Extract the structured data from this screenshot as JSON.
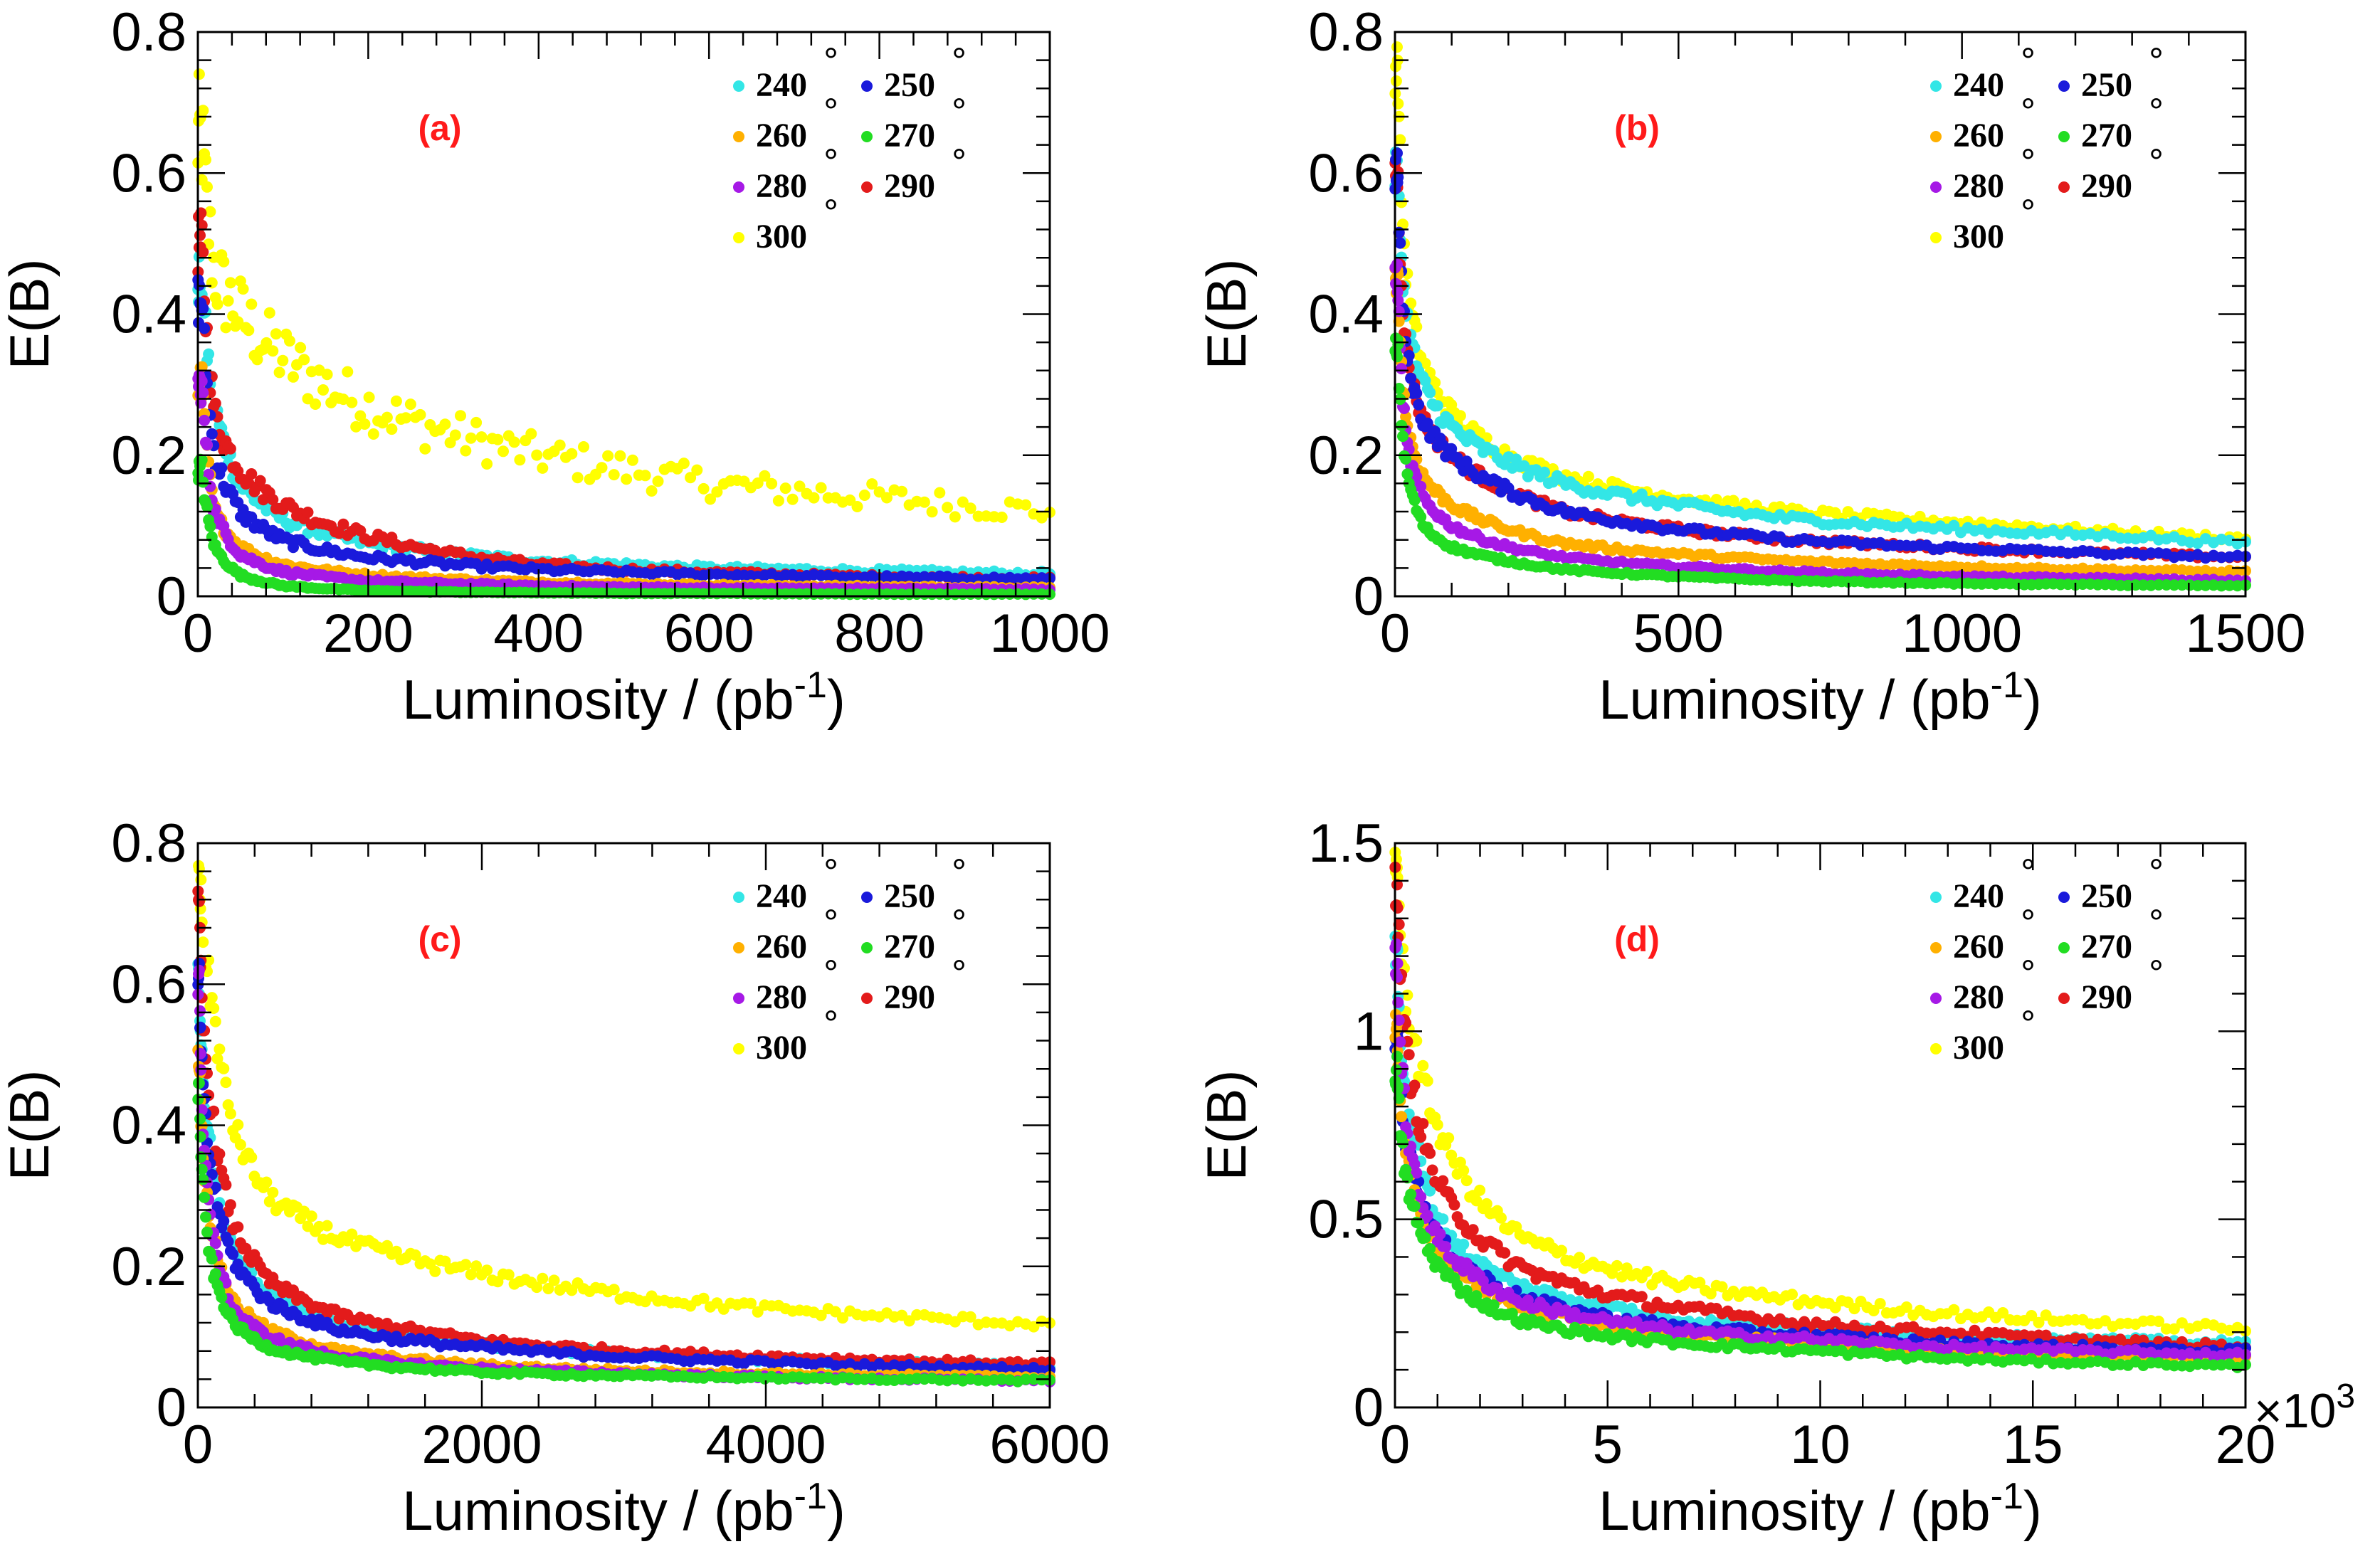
{
  "chart_data": [
    {
      "type": "scatter",
      "panel_label": "(a)",
      "xlabel": "Luminosity / (pb",
      "xlabel_sup": "-1",
      "xlabel_close": ")",
      "ylabel": "E(B)",
      "xlim": [
        0,
        1000
      ],
      "ylim": [
        0,
        0.8
      ],
      "xticks": [
        "0",
        "200",
        "400",
        "600",
        "800",
        "1000"
      ],
      "yticks": [
        "0",
        "0.2",
        "0.4",
        "0.6",
        "0.8"
      ],
      "x_multiplier": "",
      "series": [
        {
          "name": "240",
          "color": "#33e6e6",
          "x": [
            5,
            20,
            50,
            100,
            200,
            300,
            400,
            500,
            600,
            800,
            1000
          ],
          "y": [
            0.45,
            0.27,
            0.16,
            0.11,
            0.075,
            0.06,
            0.05,
            0.045,
            0.04,
            0.036,
            0.032
          ]
        },
        {
          "name": "250",
          "color": "#1a1adb",
          "x": [
            5,
            20,
            50,
            100,
            200,
            300,
            400,
            500,
            600,
            800,
            1000
          ],
          "y": [
            0.42,
            0.2,
            0.12,
            0.08,
            0.055,
            0.045,
            0.038,
            0.034,
            0.031,
            0.027,
            0.025
          ]
        },
        {
          "name": "260",
          "color": "#ffb000",
          "x": [
            5,
            20,
            50,
            100,
            200,
            300,
            400,
            500,
            600,
            800,
            1000
          ],
          "y": [
            0.3,
            0.12,
            0.07,
            0.045,
            0.03,
            0.024,
            0.02,
            0.018,
            0.016,
            0.014,
            0.012
          ]
        },
        {
          "name": "270",
          "color": "#22dd22",
          "x": [
            5,
            20,
            50,
            100,
            200,
            300,
            400,
            500,
            600,
            800,
            1000
          ],
          "y": [
            0.18,
            0.07,
            0.03,
            0.015,
            0.008,
            0.006,
            0.005,
            0.004,
            0.004,
            0.003,
            0.003
          ]
        },
        {
          "name": "280",
          "color": "#a619e6",
          "x": [
            5,
            20,
            50,
            100,
            200,
            300,
            400,
            500,
            600,
            800,
            1000
          ],
          "y": [
            0.3,
            0.12,
            0.06,
            0.035,
            0.022,
            0.018,
            0.015,
            0.013,
            0.012,
            0.011,
            0.01
          ]
        },
        {
          "name": "290",
          "color": "#e31b1b",
          "x": [
            5,
            20,
            50,
            100,
            200,
            300,
            400,
            500,
            600,
            800,
            1000
          ],
          "y": [
            0.5,
            0.26,
            0.18,
            0.13,
            0.085,
            0.06,
            0.045,
            0.038,
            0.034,
            0.028,
            0.025
          ]
        },
        {
          "name": "300",
          "color": "#ffff00",
          "x": [
            5,
            20,
            50,
            100,
            200,
            300,
            400,
            500,
            600,
            800,
            1000
          ],
          "y": [
            0.65,
            0.46,
            0.4,
            0.34,
            0.27,
            0.23,
            0.2,
            0.18,
            0.16,
            0.14,
            0.12
          ]
        }
      ]
    },
    {
      "type": "scatter",
      "panel_label": "(b)",
      "xlabel": "Luminosity / (pb",
      "xlabel_sup": "-1",
      "xlabel_close": ")",
      "ylabel": "E(B)",
      "xlim": [
        0,
        1500
      ],
      "ylim": [
        0,
        0.8
      ],
      "xticks": [
        "0",
        "500",
        "1000",
        "1500"
      ],
      "yticks": [
        "0",
        "0.2",
        "0.4",
        "0.6",
        "0.8"
      ],
      "x_multiplier": "",
      "series": [
        {
          "name": "240",
          "color": "#33e6e6",
          "x": [
            5,
            20,
            50,
            100,
            200,
            300,
            500,
            700,
            1000,
            1300,
            1500
          ],
          "y": [
            0.6,
            0.4,
            0.3,
            0.24,
            0.19,
            0.16,
            0.13,
            0.11,
            0.095,
            0.085,
            0.075
          ]
        },
        {
          "name": "250",
          "color": "#1a1adb",
          "x": [
            5,
            20,
            50,
            100,
            200,
            300,
            500,
            700,
            1000,
            1300,
            1500
          ],
          "y": [
            0.6,
            0.35,
            0.25,
            0.2,
            0.15,
            0.12,
            0.095,
            0.08,
            0.068,
            0.06,
            0.055
          ]
        },
        {
          "name": "260",
          "color": "#ffb000",
          "x": [
            5,
            20,
            50,
            100,
            200,
            300,
            500,
            700,
            1000,
            1300,
            1500
          ],
          "y": [
            0.45,
            0.25,
            0.17,
            0.13,
            0.095,
            0.075,
            0.06,
            0.05,
            0.042,
            0.037,
            0.035
          ]
        },
        {
          "name": "270",
          "color": "#22dd22",
          "x": [
            5,
            20,
            50,
            100,
            200,
            300,
            500,
            700,
            1000,
            1300,
            1500
          ],
          "y": [
            0.35,
            0.18,
            0.1,
            0.07,
            0.05,
            0.038,
            0.028,
            0.022,
            0.018,
            0.016,
            0.015
          ]
        },
        {
          "name": "280",
          "color": "#a619e6",
          "x": [
            5,
            20,
            50,
            100,
            200,
            300,
            500,
            700,
            1000,
            1300,
            1500
          ],
          "y": [
            0.45,
            0.22,
            0.14,
            0.1,
            0.07,
            0.055,
            0.042,
            0.035,
            0.028,
            0.025,
            0.022
          ]
        },
        {
          "name": "290",
          "color": "#e31b1b",
          "x": [
            5,
            20,
            50,
            100,
            200,
            300,
            500,
            700,
            1000,
            1300,
            1500
          ],
          "y": [
            0.6,
            0.35,
            0.25,
            0.2,
            0.15,
            0.12,
            0.095,
            0.08,
            0.068,
            0.06,
            0.055
          ]
        },
        {
          "name": "300",
          "color": "#ffff00",
          "x": [
            5,
            20,
            50,
            100,
            200,
            300,
            500,
            700,
            1000,
            1300,
            1500
          ],
          "y": [
            0.75,
            0.45,
            0.33,
            0.26,
            0.2,
            0.17,
            0.14,
            0.12,
            0.105,
            0.09,
            0.082
          ]
        }
      ]
    },
    {
      "type": "scatter",
      "panel_label": "(c)",
      "xlabel": "Luminosity / (pb",
      "xlabel_sup": "-1",
      "xlabel_close": ")",
      "ylabel": "E(B)",
      "xlim": [
        0,
        6000
      ],
      "ylim": [
        0,
        0.8
      ],
      "xticks": [
        "0",
        "2000",
        "4000",
        "6000"
      ],
      "yticks": [
        "0",
        "0.2",
        "0.4",
        "0.6",
        "0.8"
      ],
      "x_multiplier": "",
      "series": [
        {
          "name": "240",
          "color": "#33e6e6",
          "x": [
            10,
            100,
            250,
            500,
            1000,
            1500,
            2000,
            3000,
            4000,
            5000,
            6000
          ],
          "y": [
            0.6,
            0.35,
            0.22,
            0.16,
            0.12,
            0.1,
            0.09,
            0.075,
            0.068,
            0.062,
            0.058
          ]
        },
        {
          "name": "250",
          "color": "#1a1adb",
          "x": [
            10,
            100,
            250,
            500,
            1000,
            1500,
            2000,
            3000,
            4000,
            5000,
            6000
          ],
          "y": [
            0.6,
            0.33,
            0.21,
            0.15,
            0.11,
            0.095,
            0.085,
            0.072,
            0.064,
            0.058,
            0.054
          ]
        },
        {
          "name": "260",
          "color": "#ffb000",
          "x": [
            10,
            100,
            250,
            500,
            1000,
            1500,
            2000,
            3000,
            4000,
            5000,
            6000
          ],
          "y": [
            0.5,
            0.25,
            0.15,
            0.11,
            0.08,
            0.068,
            0.06,
            0.052,
            0.048,
            0.045,
            0.043
          ]
        },
        {
          "name": "270",
          "color": "#22dd22",
          "x": [
            10,
            100,
            250,
            500,
            1000,
            1500,
            2000,
            3000,
            4000,
            5000,
            6000
          ],
          "y": [
            0.45,
            0.2,
            0.12,
            0.085,
            0.065,
            0.056,
            0.05,
            0.045,
            0.042,
            0.04,
            0.038
          ]
        },
        {
          "name": "280",
          "color": "#a619e6",
          "x": [
            10,
            100,
            250,
            500,
            1000,
            1500,
            2000,
            3000,
            4000,
            5000,
            6000
          ],
          "y": [
            0.6,
            0.25,
            0.14,
            0.1,
            0.072,
            0.062,
            0.055,
            0.048,
            0.043,
            0.04,
            0.038
          ]
        },
        {
          "name": "290",
          "color": "#e31b1b",
          "x": [
            10,
            100,
            250,
            500,
            1000,
            1500,
            2000,
            3000,
            4000,
            5000,
            6000
          ],
          "y": [
            0.7,
            0.42,
            0.26,
            0.18,
            0.13,
            0.11,
            0.095,
            0.08,
            0.072,
            0.066,
            0.062
          ]
        },
        {
          "name": "300",
          "color": "#ffff00",
          "x": [
            10,
            100,
            250,
            500,
            1000,
            1500,
            2000,
            3000,
            4000,
            5000,
            6000
          ],
          "y": [
            0.78,
            0.58,
            0.4,
            0.3,
            0.24,
            0.21,
            0.19,
            0.16,
            0.14,
            0.128,
            0.118
          ]
        }
      ]
    },
    {
      "type": "scatter",
      "panel_label": "(d)",
      "xlabel": "Luminosity / (pb",
      "xlabel_sup": "-1",
      "xlabel_close": ")",
      "ylabel": "E(B)",
      "xlim": [
        0,
        20
      ],
      "ylim": [
        0,
        1.5
      ],
      "xticks": [
        "0",
        "5",
        "10",
        "15",
        "20"
      ],
      "yticks": [
        "0",
        "0.5",
        "1",
        "1.5"
      ],
      "x_multiplier": "×10",
      "x_multiplier_exp": "3",
      "series": [
        {
          "name": "240",
          "color": "#33e6e6",
          "x": [
            0.05,
            0.5,
            1,
            2,
            3,
            5,
            7,
            10,
            13,
            16,
            20
          ],
          "y": [
            1.2,
            0.7,
            0.5,
            0.38,
            0.32,
            0.27,
            0.23,
            0.21,
            0.19,
            0.18,
            0.17
          ]
        },
        {
          "name": "250",
          "color": "#1a1adb",
          "x": [
            0.05,
            0.5,
            1,
            2,
            3,
            5,
            7,
            10,
            13,
            16,
            20
          ],
          "y": [
            1.0,
            0.6,
            0.45,
            0.35,
            0.29,
            0.24,
            0.21,
            0.19,
            0.17,
            0.16,
            0.15
          ]
        },
        {
          "name": "260",
          "color": "#ffb000",
          "x": [
            0.05,
            0.5,
            1,
            2,
            3,
            5,
            7,
            10,
            13,
            16,
            20
          ],
          "y": [
            1.0,
            0.55,
            0.42,
            0.32,
            0.27,
            0.22,
            0.19,
            0.17,
            0.15,
            0.14,
            0.13
          ]
        },
        {
          "name": "270",
          "color": "#22dd22",
          "x": [
            0.05,
            0.5,
            1,
            2,
            3,
            5,
            7,
            10,
            13,
            16,
            20
          ],
          "y": [
            0.9,
            0.5,
            0.38,
            0.28,
            0.23,
            0.19,
            0.17,
            0.15,
            0.13,
            0.12,
            0.11
          ]
        },
        {
          "name": "280",
          "color": "#a619e6",
          "x": [
            0.05,
            0.5,
            1,
            2,
            3,
            5,
            7,
            10,
            13,
            16,
            20
          ],
          "y": [
            1.2,
            0.6,
            0.45,
            0.34,
            0.28,
            0.23,
            0.2,
            0.18,
            0.16,
            0.15,
            0.14
          ]
        },
        {
          "name": "290",
          "color": "#e31b1b",
          "x": [
            0.05,
            0.5,
            1,
            2,
            3,
            5,
            7,
            10,
            13,
            16,
            20
          ],
          "y": [
            1.4,
            0.8,
            0.6,
            0.45,
            0.37,
            0.3,
            0.26,
            0.22,
            0.2,
            0.18,
            0.16
          ]
        },
        {
          "name": "300",
          "color": "#ffff00",
          "x": [
            0.05,
            0.5,
            1,
            2,
            3,
            5,
            7,
            10,
            13,
            16,
            20
          ],
          "y": [
            1.45,
            0.95,
            0.75,
            0.55,
            0.45,
            0.37,
            0.32,
            0.28,
            0.25,
            0.23,
            0.21
          ]
        }
      ]
    }
  ],
  "legend_degree_symbol": "°"
}
